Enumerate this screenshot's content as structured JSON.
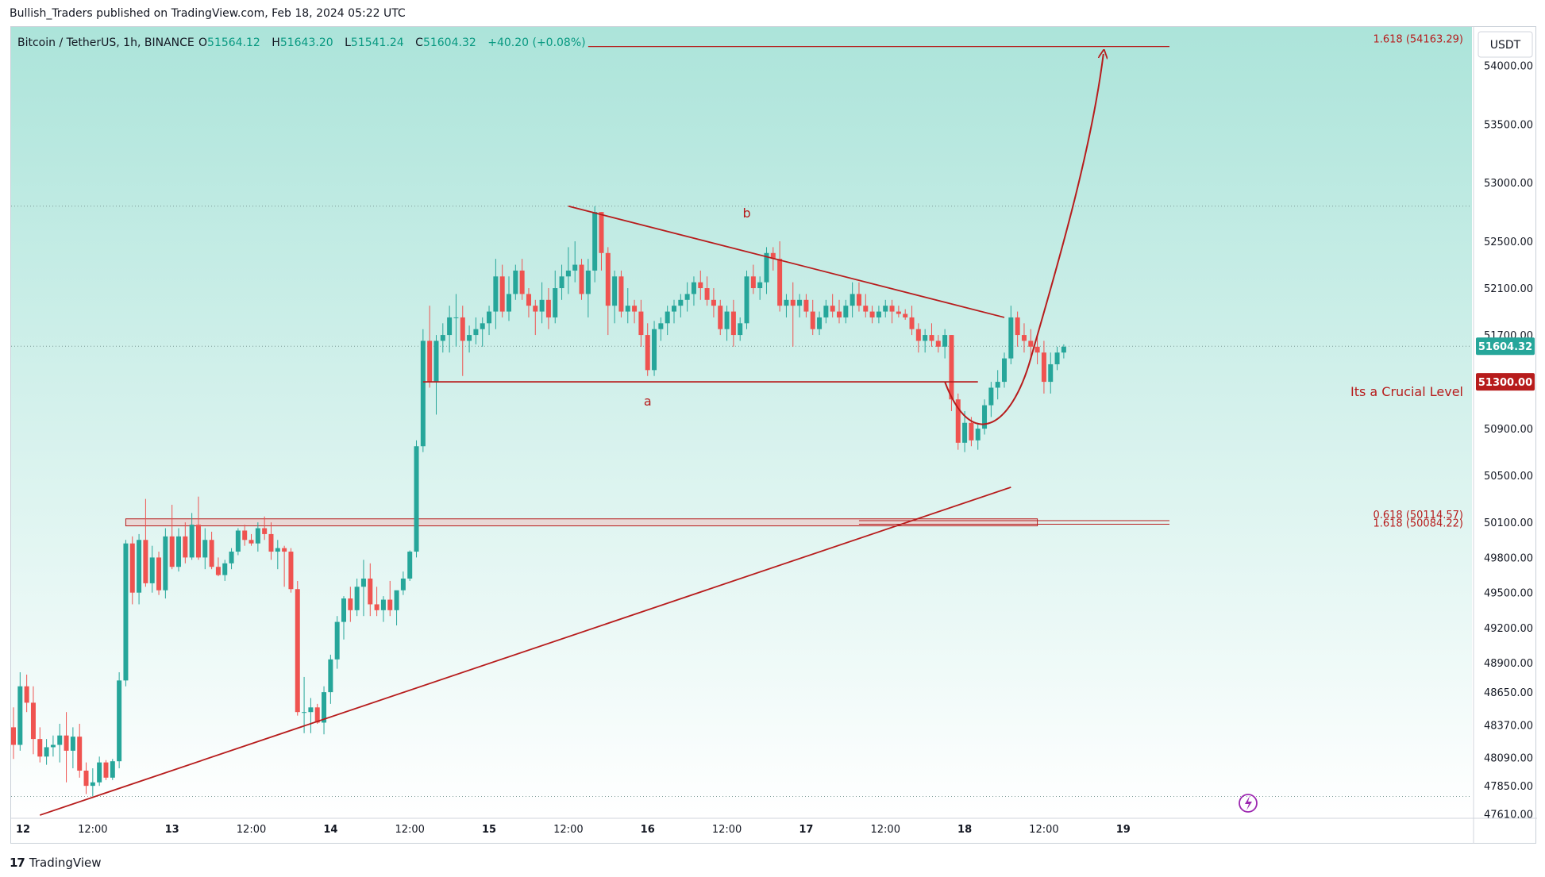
{
  "header": {
    "text": "Bullish_Traders published on TradingView.com, Feb 18, 2024 05:22 UTC"
  },
  "footer": {
    "logo_text": "TradingView",
    "logo_icon": "tradingview-logo-icon"
  },
  "legend": {
    "symbol": "Bitcoin / TetherUS, 1h, BINANCE",
    "o_label": "O",
    "o_value": "51564.12",
    "h_label": "H",
    "h_value": "51643.20",
    "l_label": "L",
    "l_value": "51541.24",
    "c_label": "C",
    "c_value": "51604.32",
    "change": "+40.20 (+0.08%)"
  },
  "currency_button": "USDT",
  "colors": {
    "up": "#26a69a",
    "down": "#ef5350",
    "drawing": "#b71c1c",
    "bg_top": "#ace4da",
    "bg_bottom": "#ffffff",
    "legend_value": "#089981"
  },
  "chart_data": {
    "type": "candlestick",
    "title": "Bitcoin / TetherUS, 1h, BINANCE",
    "ylim": [
      47580,
      54330
    ],
    "y_ticks": [
      "54000.00",
      "53500.00",
      "53000.00",
      "52500.00",
      "52100.00",
      "51700.00",
      "50900.00",
      "50500.00",
      "50100.00",
      "49800.00",
      "49500.00",
      "49200.00",
      "48900.00",
      "48650.00",
      "48370.00",
      "48090.00",
      "47850.00",
      "47610.00"
    ],
    "x_ticks": [
      {
        "i": 0,
        "label": "12"
      },
      {
        "i": 12,
        "label": "12:00"
      },
      {
        "i": 24,
        "label": "13"
      },
      {
        "i": 36,
        "label": "12:00"
      },
      {
        "i": 48,
        "label": "14"
      },
      {
        "i": 60,
        "label": "12:00"
      },
      {
        "i": 72,
        "label": "15"
      },
      {
        "i": 84,
        "label": "12:00"
      },
      {
        "i": 96,
        "label": "16"
      },
      {
        "i": 108,
        "label": "12:00"
      },
      {
        "i": 120,
        "label": "17"
      },
      {
        "i": 132,
        "label": "12:00"
      },
      {
        "i": 144,
        "label": "18"
      },
      {
        "i": 156,
        "label": "12:00"
      },
      {
        "i": 168,
        "label": "19"
      }
    ],
    "candles": [
      [
        48350,
        48520,
        48080,
        48200
      ],
      [
        48200,
        48820,
        48150,
        48700
      ],
      [
        48700,
        48800,
        48480,
        48560
      ],
      [
        48560,
        48700,
        48120,
        48250
      ],
      [
        48250,
        48350,
        48050,
        48100
      ],
      [
        48100,
        48250,
        48030,
        48180
      ],
      [
        48180,
        48280,
        48100,
        48200
      ],
      [
        48200,
        48380,
        48050,
        48280
      ],
      [
        48280,
        48480,
        47880,
        48150
      ],
      [
        48150,
        48350,
        48000,
        48270
      ],
      [
        48270,
        48380,
        47920,
        47980
      ],
      [
        47980,
        48050,
        47780,
        47850
      ],
      [
        47850,
        48000,
        47760,
        47880
      ],
      [
        47880,
        48100,
        47850,
        48050
      ],
      [
        48050,
        48070,
        47900,
        47920
      ],
      [
        47920,
        48080,
        47900,
        48060
      ],
      [
        48060,
        48820,
        48000,
        48750
      ],
      [
        48750,
        49950,
        48700,
        49920
      ],
      [
        49920,
        49980,
        49400,
        49500
      ],
      [
        49500,
        50000,
        49400,
        49950
      ],
      [
        49950,
        50300,
        49550,
        49580
      ],
      [
        49580,
        49900,
        49500,
        49800
      ],
      [
        49800,
        49850,
        49480,
        49520
      ],
      [
        49520,
        50050,
        49450,
        49980
      ],
      [
        49980,
        50250,
        49700,
        49720
      ],
      [
        49720,
        50050,
        49680,
        49980
      ],
      [
        49980,
        50100,
        49750,
        49800
      ],
      [
        49800,
        50180,
        49780,
        50080
      ],
      [
        50080,
        50320,
        49780,
        49800
      ],
      [
        49800,
        50050,
        49700,
        49950
      ],
      [
        49950,
        50020,
        49700,
        49720
      ],
      [
        49720,
        49800,
        49640,
        49650
      ],
      [
        49650,
        49780,
        49600,
        49750
      ],
      [
        49750,
        49880,
        49700,
        49850
      ],
      [
        49850,
        50050,
        49820,
        50030
      ],
      [
        50030,
        50080,
        49900,
        49950
      ],
      [
        49950,
        50000,
        49900,
        49920
      ],
      [
        49920,
        50100,
        49850,
        50050
      ],
      [
        50050,
        50150,
        49950,
        50000
      ],
      [
        50000,
        50100,
        49780,
        49850
      ],
      [
        49850,
        49950,
        49700,
        49880
      ],
      [
        49880,
        49900,
        49550,
        49850
      ],
      [
        49850,
        49880,
        49500,
        49530
      ],
      [
        49530,
        49600,
        48450,
        48480
      ],
      [
        48480,
        48780,
        48300,
        48480
      ],
      [
        48480,
        48600,
        48300,
        48520
      ],
      [
        48520,
        48550,
        48380,
        48390
      ],
      [
        48390,
        48700,
        48290,
        48650
      ],
      [
        48650,
        48970,
        48550,
        48930
      ],
      [
        48930,
        49300,
        48850,
        49250
      ],
      [
        49250,
        49470,
        49100,
        49450
      ],
      [
        49450,
        49550,
        49250,
        49350
      ],
      [
        49350,
        49620,
        49300,
        49550
      ],
      [
        49550,
        49780,
        49300,
        49620
      ],
      [
        49620,
        49750,
        49300,
        49400
      ],
      [
        49400,
        49550,
        49300,
        49350
      ],
      [
        49350,
        49470,
        49250,
        49440
      ],
      [
        49440,
        49600,
        49300,
        49350
      ],
      [
        49350,
        49500,
        49220,
        49520
      ],
      [
        49520,
        49680,
        49480,
        49620
      ],
      [
        49620,
        49860,
        49600,
        49850
      ],
      [
        49850,
        50800,
        49800,
        50750
      ],
      [
        50750,
        51750,
        50700,
        51650
      ],
      [
        51650,
        51950,
        51250,
        51300
      ],
      [
        51300,
        51700,
        51020,
        51650
      ],
      [
        51650,
        51800,
        51550,
        51700
      ],
      [
        51700,
        51950,
        51550,
        51850
      ],
      [
        51850,
        52050,
        51600,
        51850
      ],
      [
        51850,
        51950,
        51350,
        51650
      ],
      [
        51650,
        51780,
        51550,
        51700
      ],
      [
        51700,
        51850,
        51620,
        51750
      ],
      [
        51750,
        51850,
        51600,
        51800
      ],
      [
        51800,
        51950,
        51700,
        51900
      ],
      [
        51900,
        52350,
        51750,
        52200
      ],
      [
        52200,
        52300,
        51850,
        51900
      ],
      [
        51900,
        52200,
        51820,
        52050
      ],
      [
        52050,
        52300,
        52000,
        52250
      ],
      [
        52250,
        52350,
        52000,
        52050
      ],
      [
        52050,
        52100,
        51850,
        51950
      ],
      [
        51950,
        52000,
        51700,
        51900
      ],
      [
        51900,
        52150,
        51800,
        52000
      ],
      [
        52000,
        52100,
        51750,
        51850
      ],
      [
        51850,
        52250,
        51800,
        52100
      ],
      [
        52100,
        52300,
        52000,
        52200
      ],
      [
        52200,
        52450,
        52050,
        52250
      ],
      [
        52250,
        52500,
        52150,
        52300
      ],
      [
        52300,
        52350,
        52000,
        52050
      ],
      [
        52050,
        52350,
        51850,
        52250
      ],
      [
        52250,
        52800,
        52150,
        52750
      ],
      [
        52750,
        52750,
        52250,
        52400
      ],
      [
        52400,
        52450,
        51700,
        51950
      ],
      [
        51950,
        52250,
        51800,
        52200
      ],
      [
        52200,
        52250,
        51850,
        51900
      ],
      [
        51900,
        52100,
        51800,
        51950
      ],
      [
        51950,
        52000,
        51800,
        51900
      ],
      [
        51900,
        52000,
        51600,
        51700
      ],
      [
        51700,
        51800,
        51350,
        51400
      ],
      [
        51400,
        51820,
        51350,
        51750
      ],
      [
        51750,
        51850,
        51650,
        51800
      ],
      [
        51800,
        51950,
        51700,
        51900
      ],
      [
        51900,
        52000,
        51800,
        51950
      ],
      [
        51950,
        52050,
        51850,
        52000
      ],
      [
        52000,
        52150,
        51900,
        52050
      ],
      [
        52050,
        52200,
        51950,
        52150
      ],
      [
        52150,
        52250,
        52000,
        52100
      ],
      [
        52100,
        52200,
        51950,
        52000
      ],
      [
        52000,
        52100,
        51850,
        51950
      ],
      [
        51950,
        52000,
        51700,
        51750
      ],
      [
        51750,
        51950,
        51650,
        51900
      ],
      [
        51900,
        52000,
        51600,
        51700
      ],
      [
        51700,
        51850,
        51650,
        51800
      ],
      [
        51800,
        52250,
        51750,
        52200
      ],
      [
        52200,
        52300,
        52050,
        52100
      ],
      [
        52100,
        52200,
        52000,
        52150
      ],
      [
        52150,
        52450,
        52050,
        52400
      ],
      [
        52400,
        52450,
        52250,
        52350
      ],
      [
        52350,
        52500,
        51900,
        51950
      ],
      [
        51950,
        52050,
        51850,
        52000
      ],
      [
        52000,
        52150,
        51600,
        51950
      ],
      [
        51950,
        52050,
        51850,
        52000
      ],
      [
        52000,
        52050,
        51850,
        51900
      ],
      [
        51900,
        52000,
        51700,
        51750
      ],
      [
        51750,
        51900,
        51700,
        51850
      ],
      [
        51850,
        52000,
        51800,
        51950
      ],
      [
        51950,
        52050,
        51850,
        51900
      ],
      [
        51900,
        52000,
        51800,
        51850
      ],
      [
        51850,
        52000,
        51800,
        51950
      ],
      [
        51950,
        52150,
        51850,
        52050
      ],
      [
        52050,
        52150,
        51900,
        51950
      ],
      [
        51950,
        52050,
        51850,
        51900
      ],
      [
        51900,
        51950,
        51800,
        51850
      ],
      [
        51850,
        51950,
        51800,
        51900
      ],
      [
        51900,
        52000,
        51850,
        51950
      ],
      [
        51950,
        52000,
        51800,
        51900
      ],
      [
        51900,
        51950,
        51850,
        51880
      ],
      [
        51880,
        51920,
        51830,
        51850
      ],
      [
        51850,
        51950,
        51700,
        51750
      ],
      [
        51750,
        51800,
        51550,
        51650
      ],
      [
        51650,
        51750,
        51550,
        51700
      ],
      [
        51700,
        51800,
        51600,
        51650
      ],
      [
        51650,
        51700,
        51550,
        51600
      ],
      [
        51600,
        51750,
        51500,
        51700
      ],
      [
        51700,
        51700,
        51050,
        51150
      ],
      [
        51150,
        51200,
        50720,
        50780
      ],
      [
        50780,
        51050,
        50700,
        50950
      ],
      [
        50950,
        51000,
        50750,
        50800
      ],
      [
        50800,
        50950,
        50720,
        50900
      ],
      [
        50900,
        51150,
        50850,
        51100
      ],
      [
        51100,
        51300,
        51000,
        51250
      ],
      [
        51250,
        51400,
        51150,
        51300
      ],
      [
        51300,
        51550,
        51250,
        51500
      ],
      [
        51500,
        51950,
        51450,
        51850
      ],
      [
        51850,
        51900,
        51600,
        51700
      ],
      [
        51700,
        51800,
        51550,
        51650
      ],
      [
        51650,
        51750,
        51500,
        51600
      ],
      [
        51600,
        51700,
        51450,
        51550
      ],
      [
        51550,
        51650,
        51200,
        51300
      ],
      [
        51300,
        51550,
        51200,
        51450
      ],
      [
        51450,
        51600,
        51400,
        51550
      ],
      [
        51550,
        51620,
        51500,
        51600
      ]
    ],
    "annotations": [
      {
        "type": "label",
        "text": "a"
      },
      {
        "type": "label",
        "text": "b"
      },
      {
        "type": "label",
        "text": "Its a Crucial Level",
        "price": 51300
      },
      {
        "type": "price_tag",
        "text": "51300.00"
      },
      {
        "type": "price_tag",
        "text": "51604.32"
      },
      {
        "type": "fib",
        "text": "1.618 (54163.29)",
        "price": 54163.29
      },
      {
        "type": "fib",
        "text": "0.618 (50114.57)",
        "price": 50114.57
      },
      {
        "type": "fib",
        "text": "1.618 (50084.22)",
        "price": 50084.22
      }
    ],
    "trendlines": [
      {
        "name": "upper-descending-trendline",
        "from": [
          84,
          52800
        ],
        "to": [
          150,
          51850
        ]
      },
      {
        "name": "lower-ascending-trendline",
        "from": [
          4,
          47600
        ],
        "to": [
          151,
          50400
        ]
      },
      {
        "name": "crucial-level-line",
        "price": 51300,
        "from": [
          62,
          51300
        ],
        "to": [
          146,
          51300
        ]
      }
    ],
    "current_price": 51604.32,
    "dotted_levels": [
      52800,
      51604.32,
      47760
    ]
  }
}
